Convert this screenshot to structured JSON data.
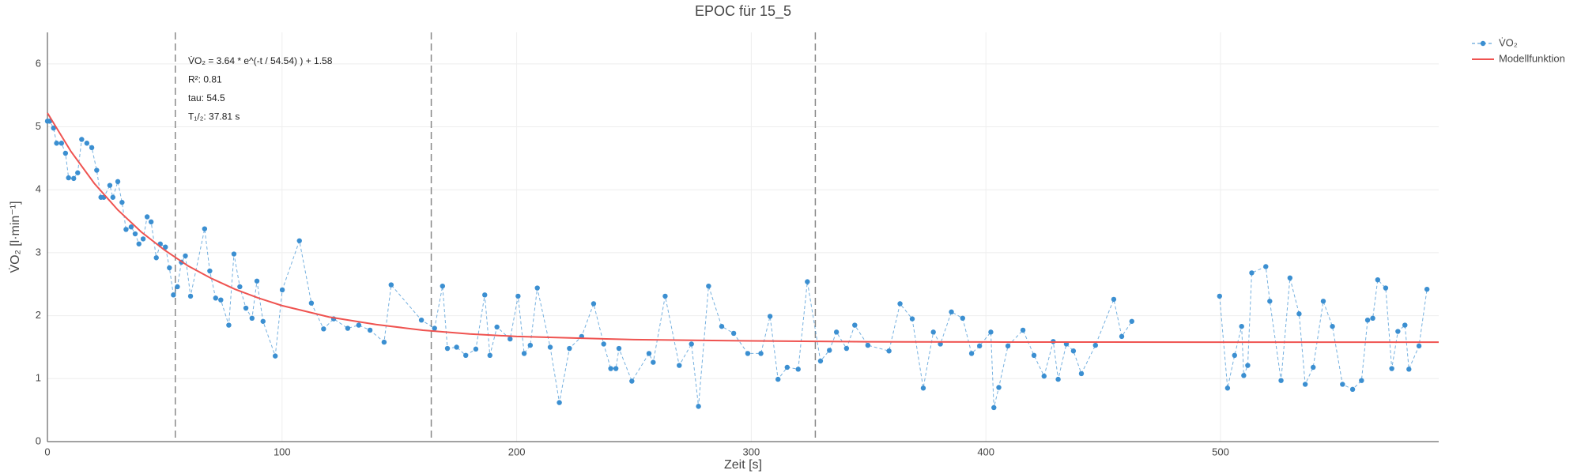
{
  "chart_data": {
    "type": "line",
    "title": "EPOC für 15_5",
    "x_label": "Zeit [s]",
    "y_label": "V̇O₂ [l·min⁻¹]",
    "xlim": [
      0,
      593
    ],
    "ylim": [
      0,
      6.5
    ],
    "xticks": [
      0,
      100,
      200,
      300,
      400,
      500
    ],
    "yticks": [
      0,
      1,
      2,
      3,
      4,
      5,
      6
    ],
    "grid": true,
    "legend": "top-right",
    "vlines": [
      54.5,
      163.6,
      327.3
    ],
    "annotations": [
      "V̇O₂ = 3.64 * e^(-t / 54.54) ) + 1.58",
      "R²: 0.81",
      "tau: 54.5",
      "T₁/₂: 37.81 s"
    ],
    "series": [
      {
        "name": "V̇O₂",
        "color": "#3b8fd1",
        "mode": "lines+markers",
        "x": [
          0,
          1,
          2.6,
          3.9,
          6,
          7.7,
          9,
          11.2,
          12.9,
          14.6,
          16.8,
          18.9,
          21,
          22.8,
          24,
          26.6,
          27.9,
          30,
          31.8,
          33.5,
          35.7,
          37.4,
          39,
          40.8,
          42.5,
          44.2,
          46.4,
          48.1,
          50.3,
          52,
          53.7,
          55.4,
          57.1,
          58.8,
          61,
          67,
          69.2,
          71.7,
          73.9,
          77.3,
          79.5,
          82,
          84.6,
          87.2,
          89.3,
          91.9,
          97.1,
          100.1,
          107.4,
          112.5,
          117.7,
          122,
          128,
          132.7,
          137.5,
          143.5,
          146.5,
          159.4,
          165,
          168.4,
          170.5,
          174.4,
          178.3,
          182.6,
          186.4,
          188.6,
          191.6,
          197.2,
          200.6,
          203.2,
          205.8,
          208.8,
          214.3,
          218.2,
          222.5,
          227.7,
          232.8,
          237.1,
          240.1,
          242.3,
          243.6,
          249.1,
          256.4,
          258.2,
          263.3,
          269.3,
          274.5,
          277.5,
          281.8,
          287.4,
          292.5,
          298.5,
          304.1,
          308,
          311.4,
          315.3,
          320,
          323.9,
          329.5,
          333.3,
          336.3,
          340.6,
          344.1,
          349.7,
          358.7,
          363.4,
          368.6,
          373.3,
          377.6,
          380.6,
          385.3,
          390.1,
          393.9,
          397.3,
          402.1,
          403.4,
          405.5,
          409.4,
          415.8,
          420.5,
          424.8,
          428.7,
          430.8,
          434.3,
          437.3,
          440.7,
          446.7,
          454.5,
          457.9,
          462.2,
          null,
          499.6,
          503,
          506,
          509,
          509.9,
          511.6,
          513.3,
          519.3,
          521,
          525.8,
          529.6,
          533.5,
          536.1,
          539.5,
          543.8,
          547.7,
          552,
          556.3,
          560.1,
          562.7,
          564.9,
          567,
          570.4,
          573,
          575.6,
          578.6,
          580.3,
          584.6,
          588
        ],
        "values": [
          5.09,
          5.09,
          4.98,
          4.74,
          4.74,
          4.58,
          4.19,
          4.18,
          4.27,
          4.8,
          4.74,
          4.67,
          4.31,
          3.88,
          3.88,
          4.07,
          3.88,
          4.13,
          3.8,
          3.37,
          3.41,
          3.3,
          3.14,
          3.22,
          3.57,
          3.49,
          2.92,
          3.14,
          3.09,
          2.76,
          2.33,
          2.46,
          2.85,
          2.95,
          2.31,
          3.38,
          2.71,
          2.28,
          2.25,
          1.85,
          2.98,
          2.46,
          2.12,
          1.96,
          2.55,
          1.91,
          1.36,
          2.41,
          3.19,
          2.2,
          1.79,
          1.95,
          1.8,
          1.85,
          1.77,
          1.58,
          2.49,
          1.93,
          1.8,
          2.47,
          1.48,
          1.5,
          1.37,
          1.47,
          2.33,
          1.37,
          1.82,
          1.63,
          2.31,
          1.4,
          1.53,
          2.44,
          1.5,
          0.62,
          1.48,
          1.67,
          2.19,
          1.55,
          1.16,
          1.16,
          1.48,
          0.96,
          1.4,
          1.26,
          2.31,
          1.21,
          1.55,
          0.56,
          2.47,
          1.83,
          1.72,
          1.4,
          1.4,
          1.99,
          0.99,
          1.18,
          1.15,
          2.54,
          1.28,
          1.45,
          1.74,
          1.48,
          1.85,
          1.53,
          1.44,
          2.19,
          1.95,
          0.85,
          1.74,
          1.55,
          2.06,
          1.96,
          1.4,
          1.52,
          1.74,
          0.54,
          0.86,
          1.52,
          1.77,
          1.37,
          1.04,
          1.59,
          0.99,
          1.55,
          1.44,
          1.08,
          1.53,
          2.26,
          1.67,
          1.91,
          null,
          2.31,
          0.85,
          1.37,
          1.83,
          1.05,
          1.21,
          2.68,
          2.78,
          2.23,
          0.97,
          2.6,
          2.03,
          0.91,
          1.18,
          2.23,
          1.83,
          0.91,
          0.83,
          0.97,
          1.93,
          1.96,
          2.57,
          2.44,
          1.16,
          1.75,
          1.85,
          1.15,
          1.52,
          2.42
        ]
      },
      {
        "name": "Modellfunktion",
        "color": "#ef5350",
        "mode": "lines",
        "x": [
          0,
          10,
          20,
          30,
          40,
          50,
          60,
          70,
          80,
          90,
          100,
          120,
          140,
          160,
          180,
          200,
          250,
          300,
          350,
          400,
          500,
          593
        ],
        "values": [
          5.22,
          4.61,
          4.1,
          3.68,
          3.33,
          3.04,
          2.79,
          2.59,
          2.42,
          2.28,
          2.16,
          1.98,
          1.86,
          1.77,
          1.71,
          1.67,
          1.62,
          1.6,
          1.586,
          1.582,
          1.58,
          1.58
        ]
      }
    ]
  }
}
